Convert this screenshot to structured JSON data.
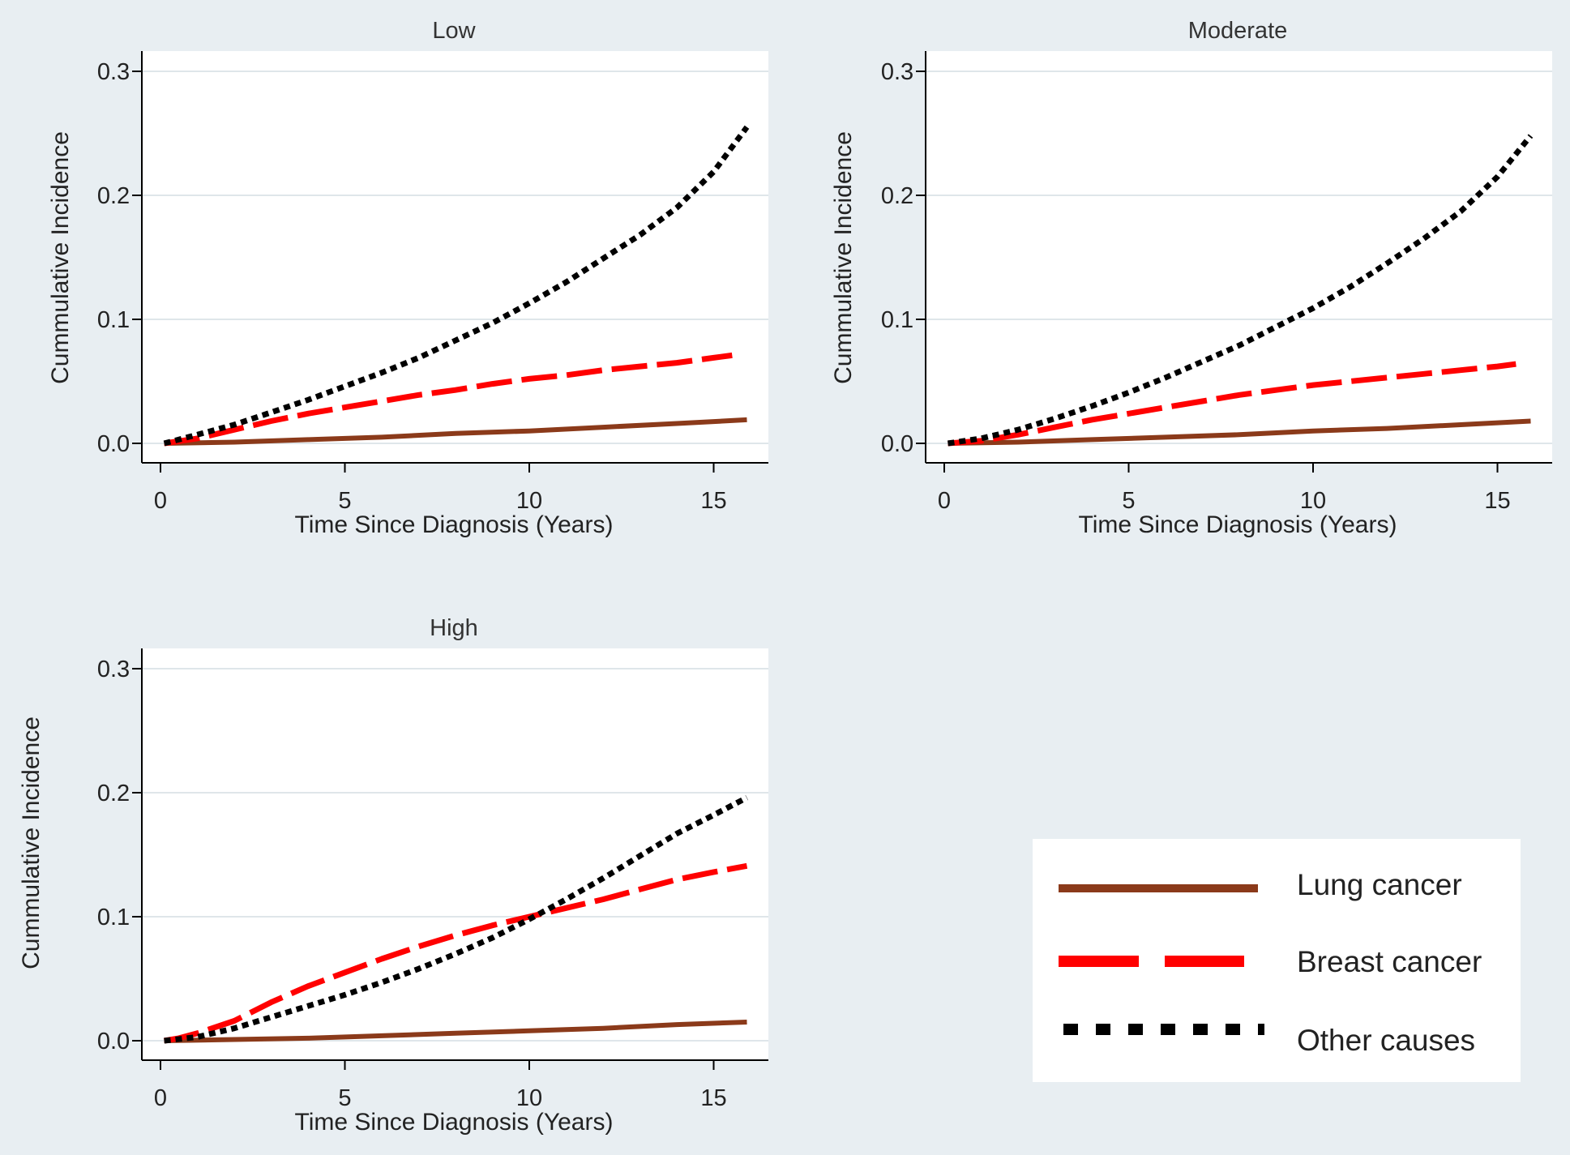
{
  "chart_data": [
    {
      "type": "line",
      "title": "Low",
      "xlabel": "Time Since Diagnosis (Years)",
      "ylabel": "Cummulative Incidence",
      "xlim": [
        0,
        16.5
      ],
      "ylim": [
        0,
        0.3
      ],
      "xticks": [
        0,
        5,
        10,
        15
      ],
      "yticks": [
        0.0,
        0.1,
        0.2,
        0.3
      ],
      "ytick_labels": [
        "0.0",
        "0.1",
        "0.2",
        "0.3"
      ],
      "grid": true,
      "series": [
        {
          "name": "Lung cancer",
          "x": [
            0.1,
            2,
            4,
            6,
            8,
            10,
            12,
            14,
            15.9
          ],
          "y": [
            0,
            0.001,
            0.003,
            0.005,
            0.008,
            0.01,
            0.013,
            0.016,
            0.019
          ]
        },
        {
          "name": "Breast cancer",
          "x": [
            0.1,
            1,
            2,
            3,
            4,
            5,
            6,
            7,
            8,
            9,
            10,
            11,
            12,
            13,
            14,
            15,
            15.5
          ],
          "y": [
            0,
            0.004,
            0.011,
            0.018,
            0.024,
            0.029,
            0.034,
            0.039,
            0.043,
            0.048,
            0.052,
            0.055,
            0.059,
            0.062,
            0.065,
            0.069,
            0.071
          ]
        },
        {
          "name": "Other causes",
          "x": [
            0.1,
            1,
            2,
            3,
            4,
            5,
            6,
            7,
            8,
            9,
            10,
            11,
            12,
            13,
            14,
            15,
            15.9
          ],
          "y": [
            0,
            0.007,
            0.015,
            0.025,
            0.035,
            0.046,
            0.057,
            0.069,
            0.083,
            0.097,
            0.113,
            0.13,
            0.149,
            0.168,
            0.19,
            0.219,
            0.255
          ]
        }
      ]
    },
    {
      "type": "line",
      "title": "Moderate",
      "xlabel": "Time Since Diagnosis (Years)",
      "ylabel": "Cummulative Incidence",
      "xlim": [
        0,
        16.5
      ],
      "ylim": [
        0,
        0.3
      ],
      "xticks": [
        0,
        5,
        10,
        15
      ],
      "yticks": [
        0.0,
        0.1,
        0.2,
        0.3
      ],
      "ytick_labels": [
        "0.0",
        "0.1",
        "0.2",
        "0.3"
      ],
      "grid": true,
      "series": [
        {
          "name": "Lung cancer",
          "x": [
            0.1,
            2,
            4,
            6,
            8,
            10,
            12,
            14,
            15.9
          ],
          "y": [
            0,
            0.001,
            0.003,
            0.005,
            0.007,
            0.01,
            0.012,
            0.015,
            0.018
          ]
        },
        {
          "name": "Breast cancer",
          "x": [
            0.1,
            1,
            2,
            3,
            4,
            5,
            6,
            7,
            8,
            9,
            10,
            11,
            12,
            13,
            14,
            15,
            15.5
          ],
          "y": [
            0,
            0.002,
            0.007,
            0.013,
            0.019,
            0.024,
            0.029,
            0.034,
            0.039,
            0.043,
            0.047,
            0.05,
            0.053,
            0.056,
            0.059,
            0.062,
            0.064
          ]
        },
        {
          "name": "Other causes",
          "x": [
            0.1,
            1,
            2,
            3,
            4,
            5,
            6,
            7,
            8,
            9,
            10,
            11,
            12,
            13,
            14,
            15,
            15.9
          ],
          "y": [
            0,
            0.004,
            0.011,
            0.02,
            0.03,
            0.041,
            0.053,
            0.066,
            0.079,
            0.094,
            0.109,
            0.126,
            0.145,
            0.165,
            0.187,
            0.215,
            0.248
          ]
        }
      ]
    },
    {
      "type": "line",
      "title": "High",
      "xlabel": "Time Since Diagnosis (Years)",
      "ylabel": "Cummulative Incidence",
      "xlim": [
        0,
        16.5
      ],
      "ylim": [
        0,
        0.3
      ],
      "xticks": [
        0,
        5,
        10,
        15
      ],
      "yticks": [
        0.0,
        0.1,
        0.2,
        0.3
      ],
      "ytick_labels": [
        "0.0",
        "0.1",
        "0.2",
        "0.3"
      ],
      "grid": true,
      "series": [
        {
          "name": "Lung cancer",
          "x": [
            0.1,
            2,
            4,
            6,
            8,
            10,
            12,
            14,
            15.9
          ],
          "y": [
            0,
            0.001,
            0.002,
            0.004,
            0.006,
            0.008,
            0.01,
            0.013,
            0.015
          ]
        },
        {
          "name": "Breast cancer",
          "x": [
            0.1,
            0.5,
            1,
            2,
            3,
            4,
            5,
            6,
            7,
            8,
            9,
            10,
            11,
            12,
            13,
            14,
            15,
            15.9
          ],
          "y": [
            0,
            0.002,
            0.006,
            0.016,
            0.031,
            0.044,
            0.055,
            0.066,
            0.076,
            0.085,
            0.093,
            0.1,
            0.107,
            0.114,
            0.122,
            0.13,
            0.136,
            0.141
          ]
        },
        {
          "name": "Other causes",
          "x": [
            0.1,
            1,
            2,
            3,
            4,
            5,
            6,
            7,
            8,
            9,
            10,
            11,
            12,
            13,
            14,
            15,
            15.9
          ],
          "y": [
            0,
            0.003,
            0.01,
            0.019,
            0.028,
            0.037,
            0.047,
            0.058,
            0.07,
            0.083,
            0.098,
            0.114,
            0.131,
            0.149,
            0.167,
            0.182,
            0.196
          ]
        }
      ]
    }
  ],
  "legend": {
    "placement": "bottom-right",
    "items": [
      {
        "label": "Lung cancer",
        "color": "#8b3a1a",
        "style": "solid"
      },
      {
        "label": "Breast cancer",
        "color": "#ff0000",
        "style": "dashed"
      },
      {
        "label": "Other causes",
        "color": "#000000",
        "style": "dotted"
      }
    ]
  },
  "colors": {
    "background": "#e8eef2",
    "plot_area": "#ffffff",
    "grid": "#dfe6ea",
    "lung": "#8b3a1a",
    "breast": "#ff0000",
    "other": "#000000"
  }
}
